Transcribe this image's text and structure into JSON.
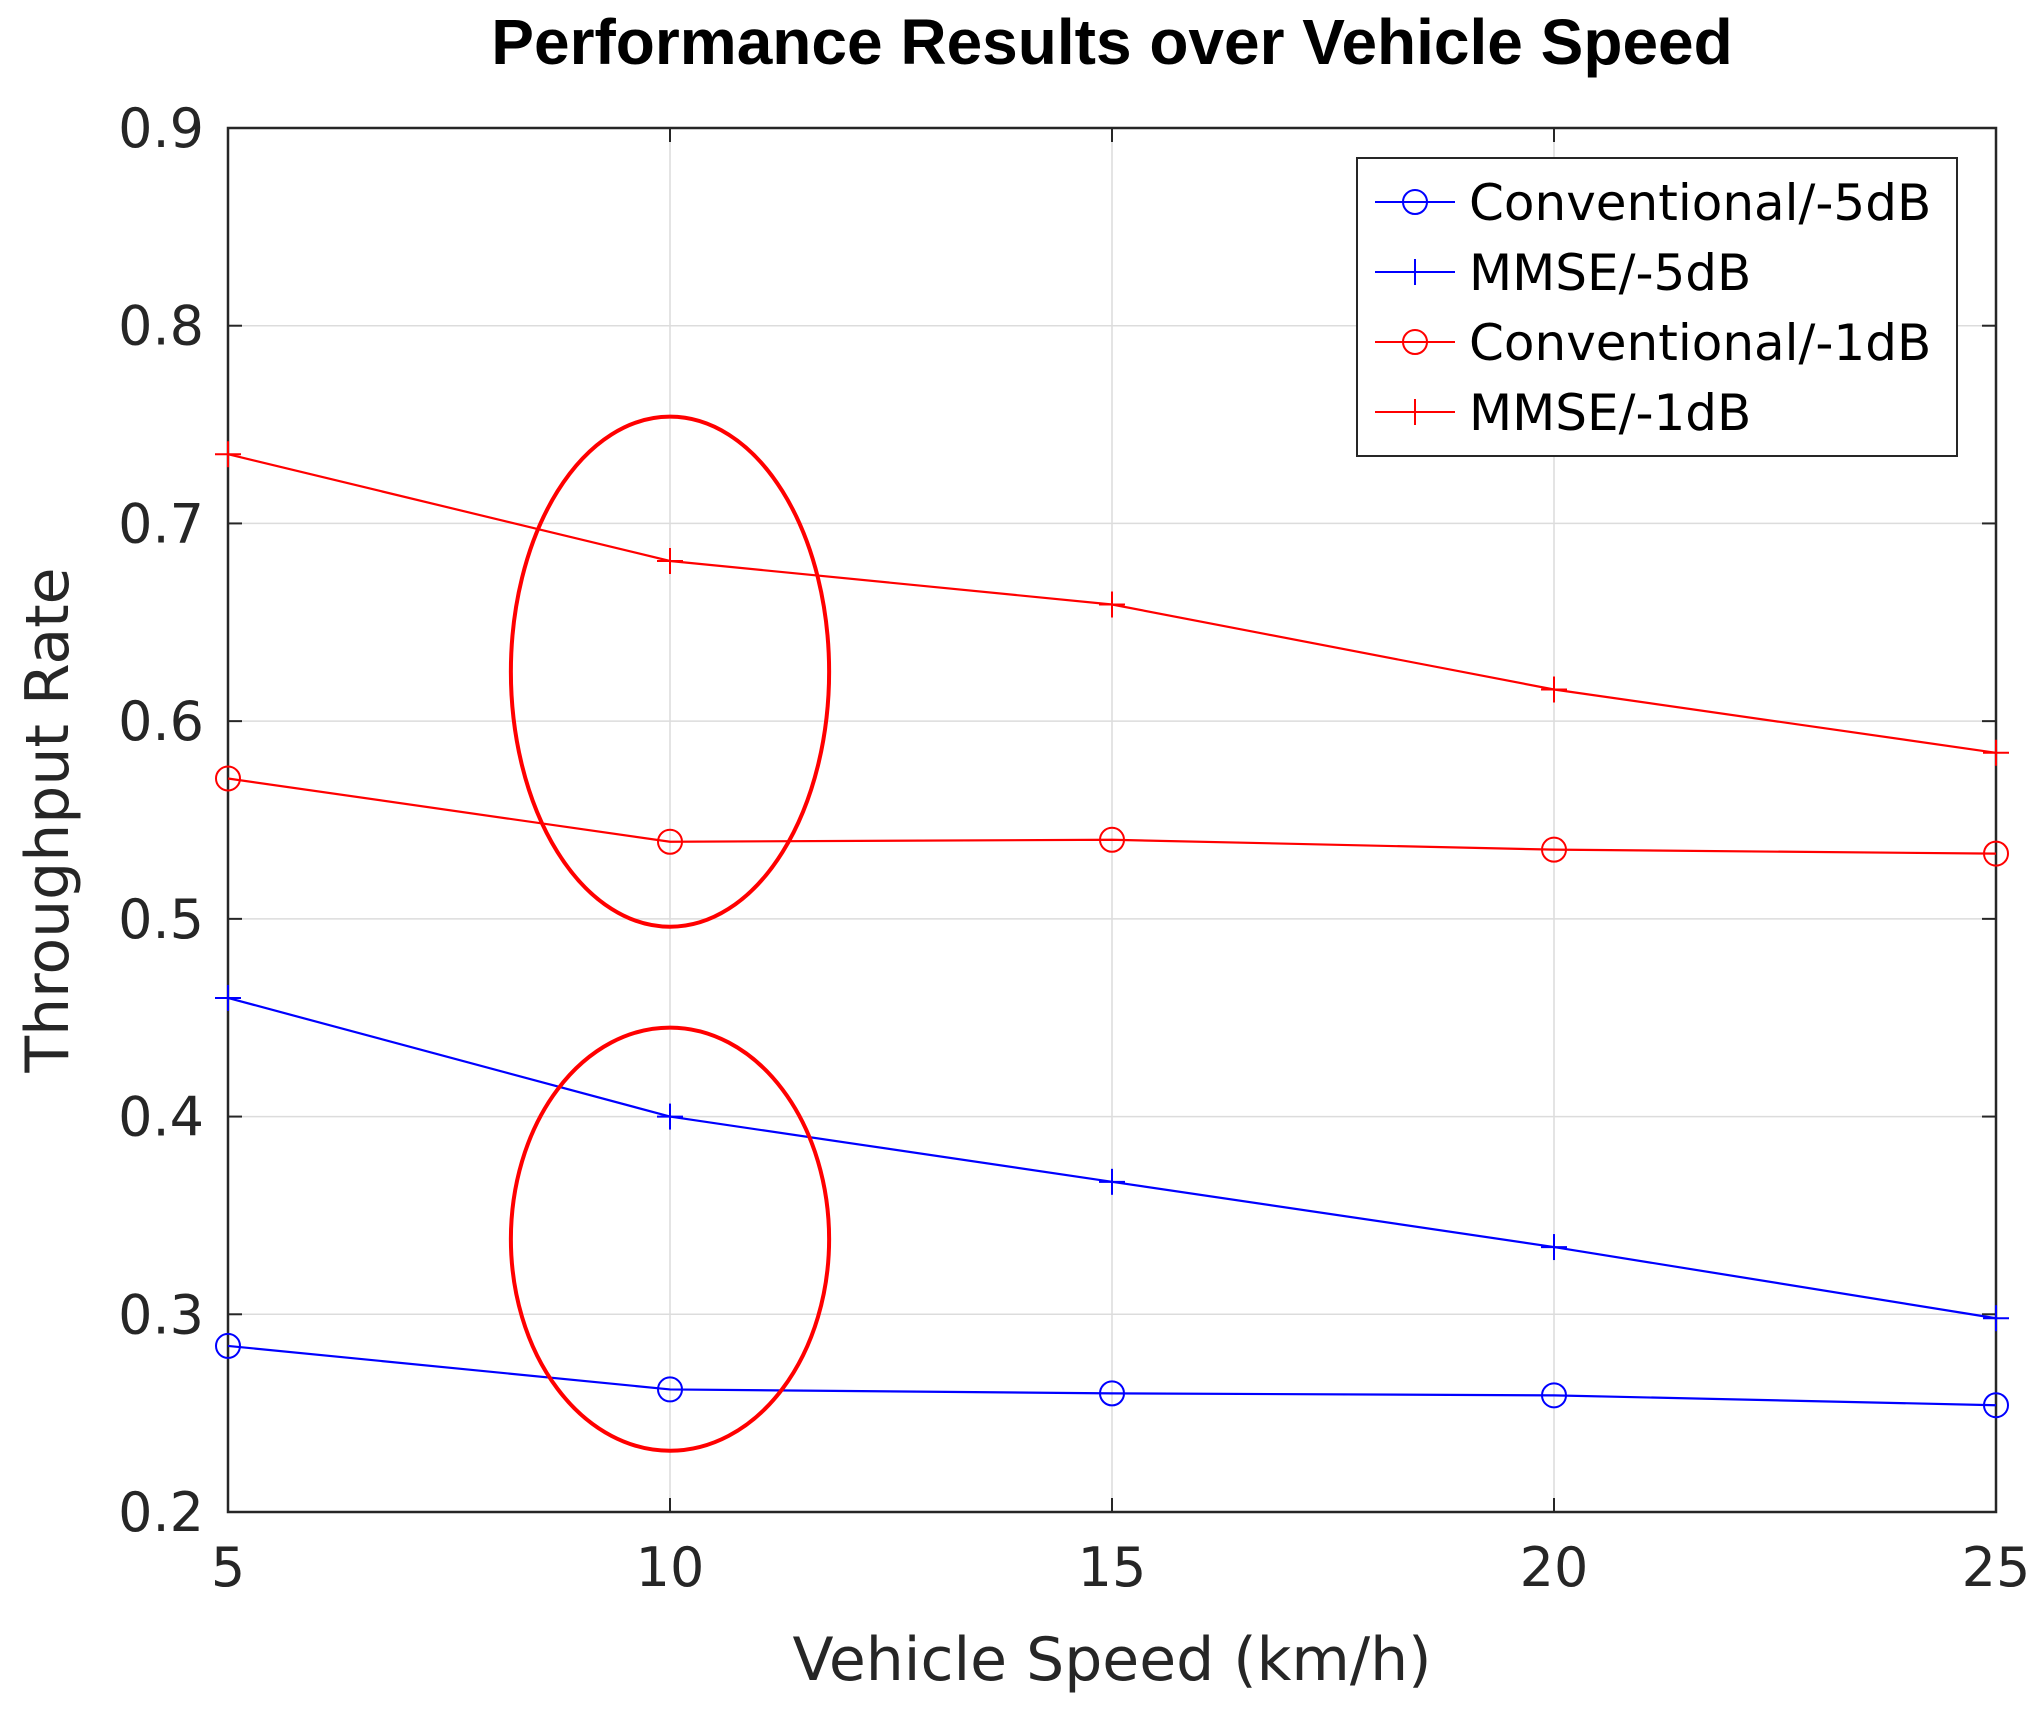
{
  "chart_data": {
    "type": "line",
    "title": "Performance Results over Vehicle Speed",
    "xlabel": "Vehicle Speed (km/h)",
    "ylabel": "Throughput Rate",
    "xlim": [
      5,
      25
    ],
    "ylim": [
      0.2,
      0.9
    ],
    "xticks": [
      5,
      10,
      15,
      20,
      25
    ],
    "yticks": [
      0.2,
      0.3,
      0.4,
      0.5,
      0.6,
      0.7,
      0.8,
      0.9
    ],
    "xtick_labels": [
      "5",
      "10",
      "15",
      "20",
      "25"
    ],
    "ytick_labels": [
      "0.2",
      "0.3",
      "0.4",
      "0.5",
      "0.6",
      "0.7",
      "0.8",
      "0.9"
    ],
    "grid": true,
    "legend_position": "top-right",
    "x": [
      5,
      10,
      15,
      20,
      25
    ],
    "series": [
      {
        "name": "Conventional/-5dB",
        "color": "#0000ff",
        "marker": "circle",
        "values": [
          0.284,
          0.262,
          0.26,
          0.259,
          0.254
        ]
      },
      {
        "name": "MMSE/-5dB",
        "color": "#0000ff",
        "marker": "plus",
        "values": [
          0.46,
          0.4,
          0.367,
          0.334,
          0.298
        ]
      },
      {
        "name": "Conventional/-1dB",
        "color": "#ff0000",
        "marker": "circle",
        "values": [
          0.571,
          0.539,
          0.54,
          0.535,
          0.533
        ]
      },
      {
        "name": "MMSE/-1dB",
        "color": "#ff0000",
        "marker": "plus",
        "values": [
          0.735,
          0.681,
          0.659,
          0.616,
          0.584
        ]
      }
    ],
    "annotations": [
      {
        "type": "ellipse",
        "color": "#ff0000",
        "center_x": 10,
        "center_y": 0.625,
        "radius_x": 1.8,
        "radius_y": 0.129
      },
      {
        "type": "ellipse",
        "color": "#ff0000",
        "center_x": 10,
        "center_y": 0.338,
        "radius_x": 1.8,
        "radius_y": 0.107
      }
    ]
  }
}
